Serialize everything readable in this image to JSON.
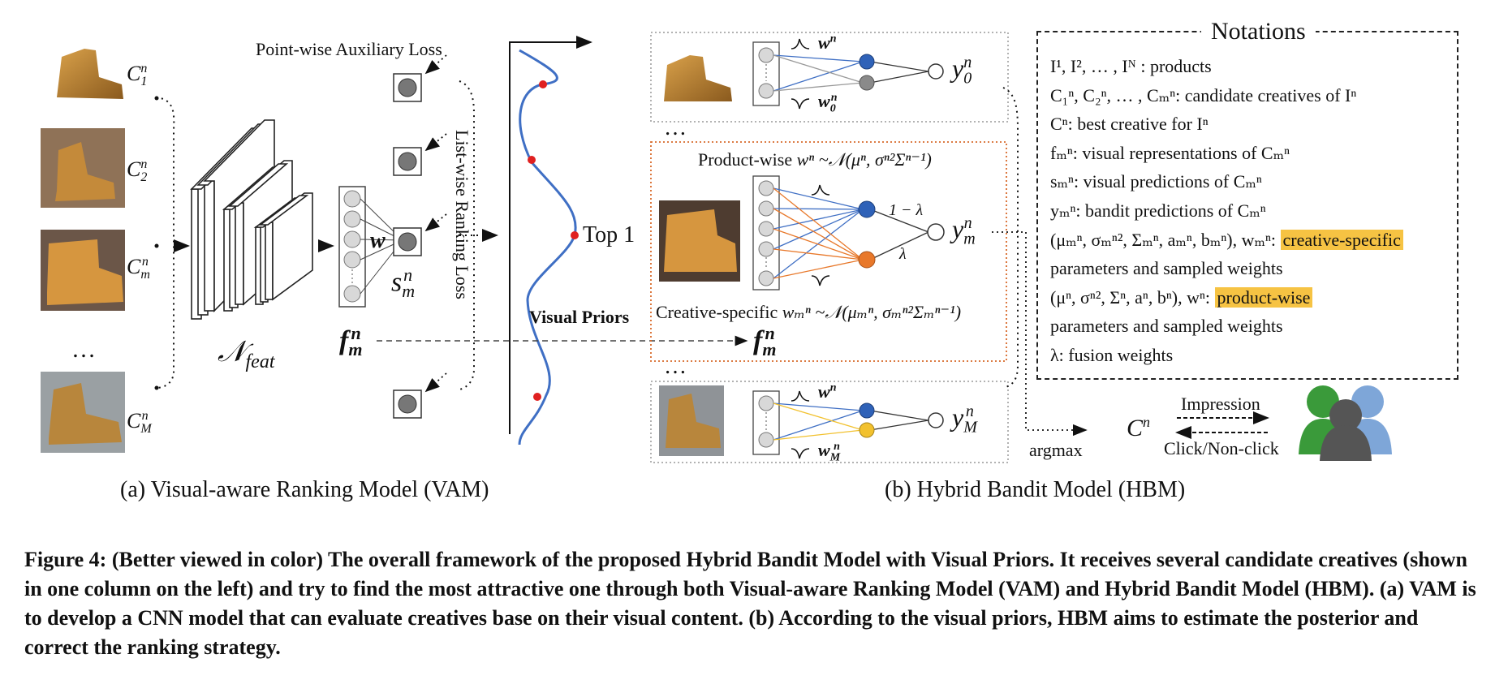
{
  "vam": {
    "pointwise_loss": "Point-wise Auxiliary Loss",
    "listwise_loss": "List-wise Ranking Loss",
    "candidates": [
      "C₁ⁿ",
      "C₂ⁿ",
      "Cₘⁿ",
      "Cₘⁿ"
    ],
    "candidate_labels": {
      "c1": "C",
      "c1_sub": "1",
      "c2": "C",
      "c2_sub": "2",
      "cm": "C",
      "cm_sub": "m",
      "cM": "C",
      "cM_sub": "M",
      "sup": "n"
    },
    "ellipsis": "…",
    "nfeat": "𝒩",
    "nfeat_sub": "feat",
    "w_label": "w",
    "s_label": "s",
    "s_sub": "m",
    "s_sup": "n",
    "f_label": "f",
    "f_sub": "m",
    "f_sup": "n",
    "visual_priors": "Visual Priors",
    "top1": "Top 1",
    "caption": "(a) Visual-aware Ranking Model (VAM)"
  },
  "hbm": {
    "wn": "w",
    "wn_sup": "n",
    "w0n_sub": "0",
    "wMn_sub": "M",
    "y0": "y",
    "y0_sub": "0",
    "ym_sub": "m",
    "yM_sub": "M",
    "y_sup": "n",
    "product_wise_text": "Product-wise",
    "product_wise_eq": "wⁿ ~𝒩(μⁿ, σⁿ²Σⁿ⁻¹)",
    "creative_specific_text": "Creative-specific",
    "creative_specific_eq": "wₘⁿ ~𝒩(μₘⁿ, σₘⁿ²Σₘⁿ⁻¹)",
    "one_minus_lambda": "1 − λ",
    "lambda": "λ",
    "fm": "f",
    "argmax": "argmax",
    "cn": "C",
    "cn_sup": "n",
    "impression": "Impression",
    "click": "Click/Non-click",
    "dots": "…",
    "caption": "(b) Hybrid Bandit Model (HBM)"
  },
  "notations": {
    "title": "Notations",
    "lines": [
      "I¹, I², … , Iᴺ :  products",
      "C₁ⁿ, C₂ⁿ, … , Cₘⁿ: candidate creatives of Iⁿ",
      "Cⁿ: best creative for Iⁿ",
      "fₘⁿ: visual representations of Cₘⁿ",
      "sₘⁿ: visual predictions of Cₘⁿ",
      "yₘⁿ: bandit predictions of Cₘⁿ"
    ],
    "line7_prefix": "(μₘⁿ,  σₘⁿ², Σₘⁿ, aₘⁿ, bₘⁿ), wₘⁿ: ",
    "line7_highlight": "creative-specific",
    "line8": "parameters and sampled weights",
    "line9_prefix": "(μⁿ, σⁿ², Σⁿ, aⁿ, bⁿ), wⁿ: ",
    "line9_highlight": "product-wise",
    "line10": "parameters and sampled weights",
    "line11": "λ: fusion weights",
    "highlight_color": "#f6c343"
  },
  "colors": {
    "blue_node": "#2f62b8",
    "gray_node": "#8a8a8a",
    "orange_node": "#e8782a",
    "yellow_node": "#f2c12e",
    "orange_box": "#d8692a",
    "curve": "#3f6fc4",
    "red_dot": "#e02020"
  },
  "figure_caption": "Figure 4: (Better viewed in color) The overall framework of the proposed Hybrid Bandit Model with Visual Priors. It receives several candidate creatives (shown in one column on the left) and try to find the most attractive one through both Visual-aware Ranking Model (VAM) and Hybrid Bandit Model (HBM). (a) VAM is to develop a CNN model that can evaluate creatives base on their visual content. (b) According to the visual priors, HBM aims to estimate the posterior and correct the ranking strategy."
}
